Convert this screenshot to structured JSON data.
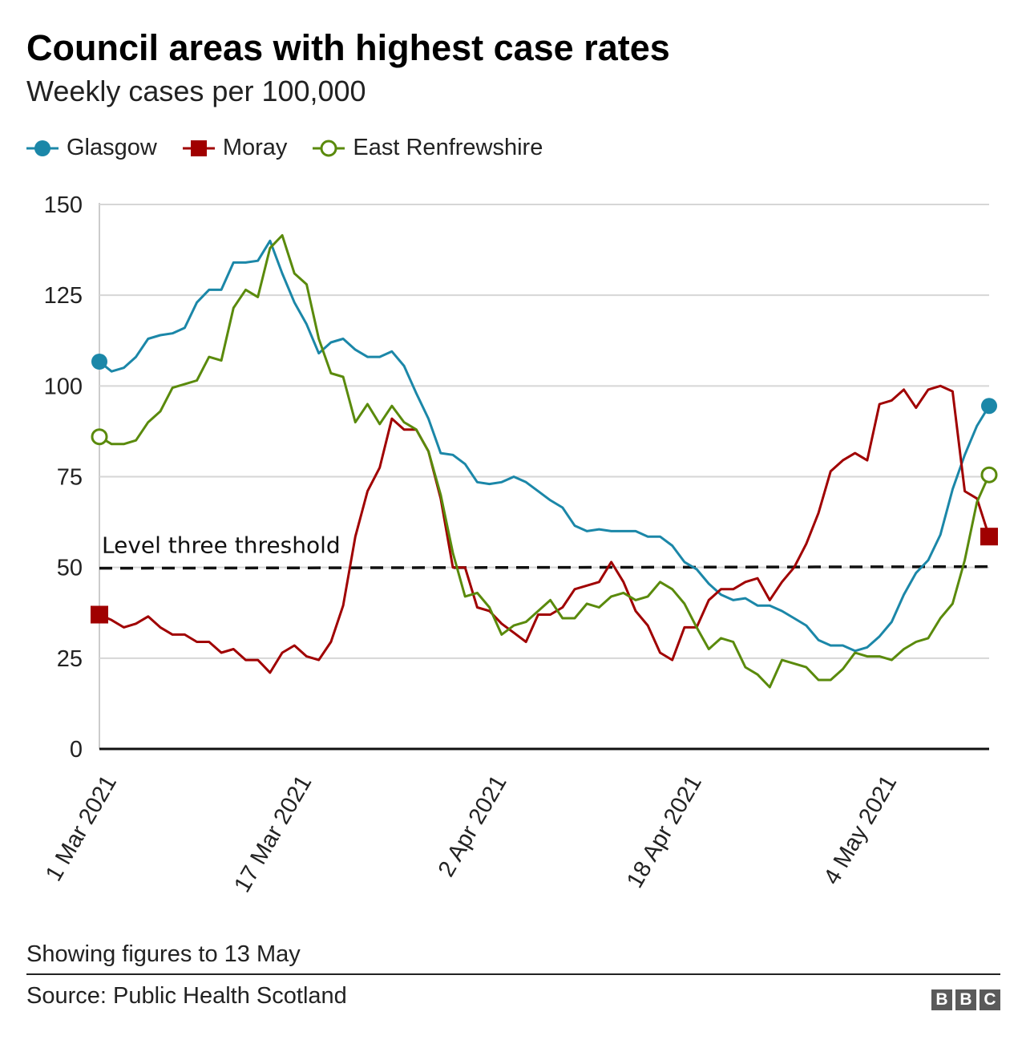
{
  "title": "Council areas with highest case rates",
  "subtitle": "Weekly cases per 100,000",
  "footnote": "Showing figures to 13 May",
  "source": "Source: Public Health Scotland",
  "logo": "BBC",
  "chart_data": {
    "type": "line",
    "ylim": [
      0,
      150
    ],
    "yticks": [
      "0",
      "25",
      "50",
      "75",
      "100",
      "125",
      "150"
    ],
    "ytick_values": [
      0,
      25,
      50,
      75,
      100,
      125,
      150
    ],
    "x_start": "1 Mar 2021",
    "x_end": "13 May 2021",
    "xticks": [
      {
        "day": 1,
        "label": "1 Mar 2021"
      },
      {
        "day": 17,
        "label": "17 Mar 2021"
      },
      {
        "day": 33,
        "label": "2 Apr 2021"
      },
      {
        "day": 49,
        "label": "18 Apr 2021"
      },
      {
        "day": 65,
        "label": "4 May 2021"
      }
    ],
    "grid": true,
    "legend": "top-left",
    "threshold": {
      "value": 50,
      "label": "Level three threshold"
    },
    "series": [
      {
        "name": "Glasgow",
        "color": "#1b87a8",
        "marker": "filled-circle",
        "values": [
          106.7,
          104,
          105,
          108,
          113,
          114,
          114.5,
          116,
          123,
          126.5,
          126.5,
          134,
          134,
          134.5,
          140,
          131,
          123,
          117,
          109,
          112,
          113,
          110,
          108,
          108,
          109.5,
          105.5,
          98,
          91,
          81.5,
          81,
          78.5,
          73.5,
          73,
          73.5,
          75,
          73.5,
          71,
          68.5,
          66.5,
          61.5,
          60,
          60.5,
          60,
          60,
          60,
          58.5,
          58.5,
          56,
          51.5,
          49.5,
          45.5,
          42.5,
          41,
          41.5,
          39.5,
          39.5,
          38,
          36,
          34,
          30,
          28.5,
          28.5,
          27,
          28,
          31,
          35,
          42.5,
          48.5,
          52,
          59,
          71.5,
          81,
          89,
          94.5
        ]
      },
      {
        "name": "Moray",
        "color": "#a00000",
        "marker": "filled-square",
        "values": [
          37,
          35.5,
          33.5,
          34.5,
          36.5,
          33.5,
          31.5,
          31.5,
          29.5,
          29.5,
          26.5,
          27.5,
          24.5,
          24.5,
          21,
          26.5,
          28.5,
          25.5,
          24.5,
          29.5,
          39.5,
          58.5,
          71,
          77.5,
          91,
          88,
          88,
          82,
          69,
          50,
          50,
          39,
          38,
          34.5,
          32,
          29.5,
          37,
          37,
          39,
          44,
          45,
          46,
          51.5,
          46,
          38,
          34,
          26.5,
          24.5,
          33.5,
          33.5,
          41,
          44,
          44,
          46,
          47,
          41,
          46,
          50,
          56.5,
          65,
          76.5,
          79.5,
          81.5,
          79.5,
          95,
          96,
          99,
          94,
          99,
          100,
          98.5,
          71,
          69,
          58.5
        ]
      },
      {
        "name": "East Renfrewshire",
        "color": "#5a8a0c",
        "marker": "open-circle",
        "values": [
          86,
          84,
          84,
          85,
          90,
          93,
          99.5,
          100.5,
          101.5,
          108,
          107,
          121.5,
          126.5,
          124.5,
          138,
          141.5,
          131,
          128,
          113,
          103.5,
          102.5,
          90,
          95,
          89.5,
          94.5,
          90,
          88,
          82,
          70,
          54,
          42,
          43,
          39,
          31.5,
          34,
          35,
          38,
          41,
          36,
          36,
          40,
          39,
          42,
          43,
          41,
          42,
          46,
          44,
          40,
          33.5,
          27.5,
          30.5,
          29.5,
          22.5,
          20.5,
          17,
          24.5,
          23.5,
          22.5,
          19,
          19,
          22,
          26.5,
          25.5,
          25.5,
          24.5,
          27.5,
          29.5,
          30.5,
          36,
          40,
          52,
          68,
          75.5
        ]
      }
    ]
  }
}
